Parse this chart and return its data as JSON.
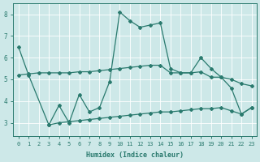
{
  "xlabel": "Humidex (Indice chaleur)",
  "x": [
    0,
    1,
    2,
    3,
    4,
    5,
    6,
    7,
    8,
    9,
    10,
    11,
    12,
    13,
    14,
    15,
    16,
    17,
    18,
    19,
    20,
    21,
    22,
    23
  ],
  "line_jagged": [
    6.5,
    5.2,
    null,
    2.9,
    3.8,
    3.0,
    4.3,
    3.5,
    3.7,
    4.9,
    8.1,
    7.7,
    7.4,
    7.5,
    7.6,
    5.5,
    5.3,
    5.3,
    6.0,
    5.5,
    5.1,
    4.6,
    3.4,
    3.7
  ],
  "line_upper_flat": [
    5.2,
    5.25,
    5.3,
    5.3,
    5.3,
    5.3,
    5.35,
    5.35,
    5.4,
    5.45,
    5.5,
    5.55,
    5.6,
    5.65,
    5.65,
    5.3,
    5.3,
    5.3,
    5.35,
    5.1,
    5.1,
    5.0,
    4.8,
    4.7
  ],
  "line_lower_flat": [
    null,
    null,
    null,
    2.9,
    3.0,
    3.05,
    3.1,
    3.15,
    3.2,
    3.25,
    3.3,
    3.35,
    3.4,
    3.45,
    3.5,
    3.5,
    3.55,
    3.6,
    3.65,
    3.65,
    3.7,
    3.55,
    3.4,
    3.7
  ],
  "color": "#2a7a6e",
  "ylim": [
    2.4,
    8.5
  ],
  "xlim": [
    -0.5,
    23.5
  ],
  "yticks": [
    3,
    4,
    5,
    6,
    7,
    8
  ],
  "xticks": [
    0,
    1,
    2,
    3,
    4,
    5,
    6,
    7,
    8,
    9,
    10,
    11,
    12,
    13,
    14,
    15,
    16,
    17,
    18,
    19,
    20,
    21,
    22,
    23
  ],
  "bg_color": "#cde8e8",
  "grid_color": "#b8d8d8",
  "text_color": "#2a7a6e",
  "spine_color": "#2a7a6e"
}
